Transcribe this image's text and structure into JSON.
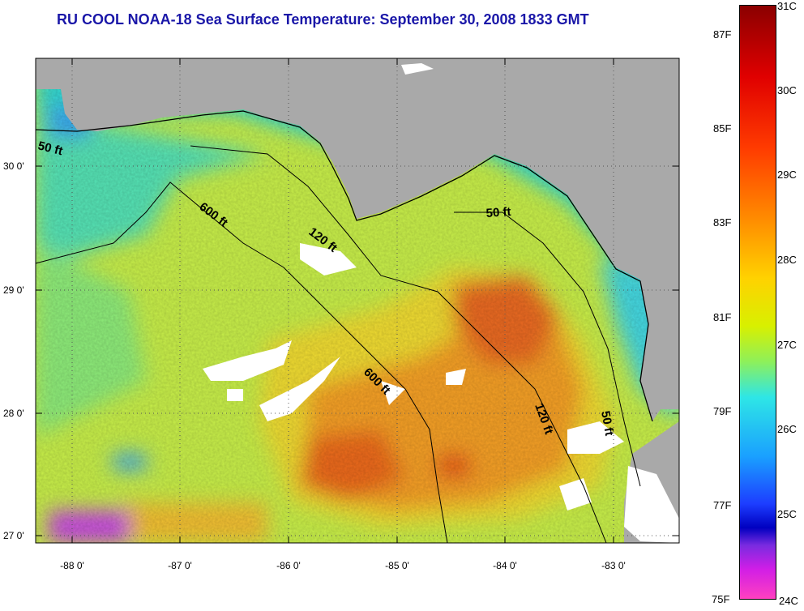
{
  "title": "RU COOL  NOAA-18  Sea Surface Temperature:  September 30, 2008 1833 GMT",
  "lat_labels": [
    "30 0'",
    "29 0'",
    "28 0'",
    "27 0'"
  ],
  "lon_labels": [
    "-88 0'",
    "-87 0'",
    "-86 0'",
    "-85 0'",
    "-84 0'",
    "-83 0'"
  ],
  "colorbar": {
    "celsius": [
      "31C",
      "30C",
      "29C",
      "28C",
      "27C",
      "26C",
      "25C",
      "24C"
    ],
    "fahrenheit": [
      "87F",
      "85F",
      "83F",
      "81F",
      "79F",
      "77F",
      "75F"
    ]
  },
  "contours": {
    "c600_a": "600 ft",
    "c120_a": "120 ft",
    "c50_a": "50 ft",
    "c50_b": "50 ft",
    "c600_b": "600 ft",
    "c120_b": "120 ft",
    "c50_c": "50 ft"
  },
  "colors": {
    "land": "#a9a9a9",
    "title": "#1a17a8",
    "sea_base": "#d4f046"
  }
}
